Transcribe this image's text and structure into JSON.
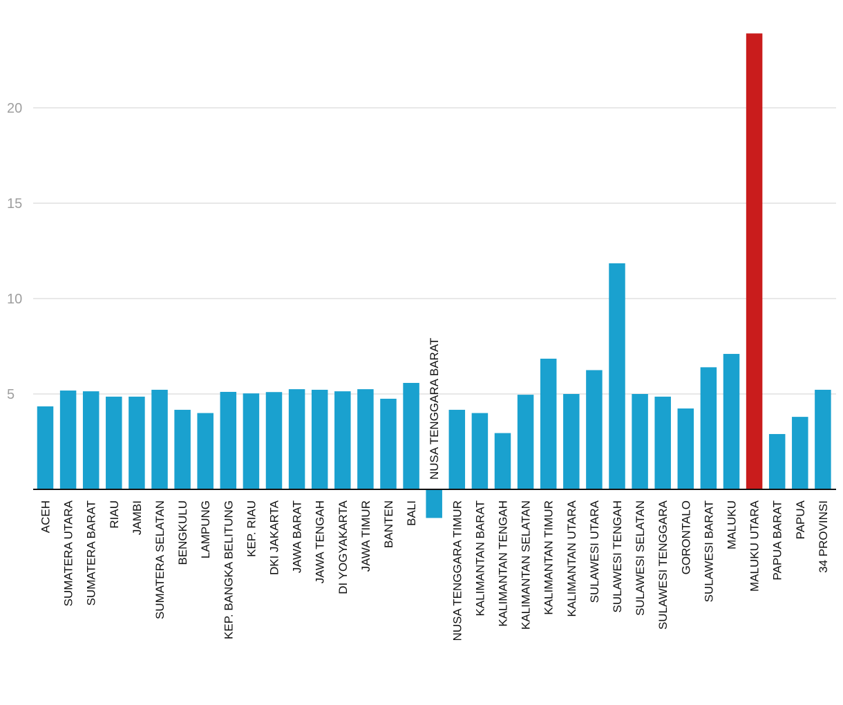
{
  "chart_data": {
    "type": "bar",
    "title": "",
    "xlabel": "",
    "ylabel": "",
    "ylim": [
      0,
      24
    ],
    "yticks": [
      5,
      10,
      15,
      20
    ],
    "grid": true,
    "legend": "none",
    "colors": {
      "default": "#1aa1cf",
      "highlight": "#c91c1c",
      "axis": "#111111",
      "grid": "#e0e0e0",
      "tick": "#9e9e9e"
    },
    "highlight_category": "MALUKU UTARA",
    "categories": [
      "ACEH",
      "SUMATERA UTARA",
      "SUMATERA BARAT",
      "RIAU",
      "JAMBI",
      "SUMATERA SELATAN",
      "BENGKULU",
      "LAMPUNG",
      "KEP. BANGKA BELITUNG",
      "KEP. RIAU",
      "DKI JAKARTA",
      "JAWA BARAT",
      "JAWA TENGAH",
      "DI YOGYAKARTA",
      "JAWA TIMUR",
      "BANTEN",
      "BALI",
      "NUSA TENGGARA BARAT",
      "NUSA TENGGARA TIMUR",
      "KALIMANTAN BARAT",
      "KALIMANTAN TENGAH",
      "KALIMANTAN SELATAN",
      "KALIMANTAN TIMUR",
      "KALIMANTAN UTARA",
      "SULAWESI UTARA",
      "SULAWESI TENGAH",
      "SULAWESI SELATAN",
      "SULAWESI TENGGARA",
      "GORONTALO",
      "SULAWESI BARAT",
      "MALUKU",
      "MALUKU UTARA",
      "PAPUA BARAT",
      "PAPUA",
      "34 PROVINSI"
    ],
    "values": [
      4.35,
      5.18,
      5.14,
      4.86,
      4.86,
      5.22,
      4.17,
      4.0,
      5.11,
      5.03,
      5.1,
      5.25,
      5.22,
      5.14,
      5.25,
      4.75,
      5.58,
      -1.5,
      4.17,
      4.0,
      2.95,
      4.96,
      6.85,
      5.0,
      6.25,
      11.85,
      5.0,
      4.86,
      4.24,
      6.4,
      7.1,
      23.9,
      2.9,
      3.8,
      5.22
    ]
  }
}
